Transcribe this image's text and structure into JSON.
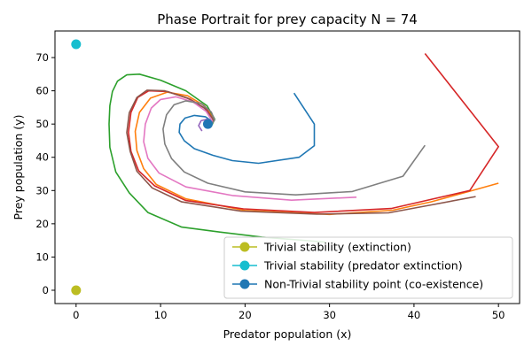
{
  "chart_data": {
    "type": "line",
    "title": "Phase Portrait for prey capacity N = 74",
    "xlabel": "Predator population (x)",
    "ylabel": "Prey population (y)",
    "xlim": [
      -2.5,
      52.5
    ],
    "ylim": [
      -4,
      78
    ],
    "xticks": [
      0,
      10,
      20,
      30,
      40,
      50
    ],
    "yticks": [
      0,
      10,
      20,
      30,
      40,
      50,
      60,
      70
    ],
    "grid": false,
    "legend_position": "bottom-right",
    "trajectories": [
      {
        "color": "#1f77b4",
        "points": [
          [
            25.8,
            59.3
          ],
          [
            28.2,
            50.0
          ],
          [
            28.2,
            43.5
          ],
          [
            26.4,
            40.0
          ],
          [
            21.6,
            38.2
          ],
          [
            18.5,
            39.0
          ],
          [
            16.2,
            40.6
          ],
          [
            14.0,
            42.6
          ],
          [
            12.8,
            45.0
          ],
          [
            12.2,
            47.5
          ],
          [
            12.3,
            50.0
          ],
          [
            12.9,
            51.8
          ],
          [
            14.0,
            52.6
          ],
          [
            15.3,
            52.2
          ],
          [
            16.1,
            50.8
          ],
          [
            15.9,
            49.8
          ]
        ]
      },
      {
        "color": "#ff7f0e",
        "points": [
          [
            50.0,
            32.2
          ],
          [
            46.5,
            29.7
          ],
          [
            42.0,
            26.6
          ],
          [
            37.5,
            24.1
          ],
          [
            30.0,
            22.8
          ],
          [
            20.0,
            24.0
          ],
          [
            13.0,
            27.5
          ],
          [
            9.5,
            31.8
          ],
          [
            8.0,
            36.6
          ],
          [
            7.2,
            42.0
          ],
          [
            7.0,
            47.8
          ],
          [
            7.5,
            53.5
          ],
          [
            8.8,
            57.8
          ],
          [
            10.8,
            59.6
          ],
          [
            13.2,
            58.5
          ],
          [
            15.2,
            55.5
          ],
          [
            16.3,
            52.0
          ],
          [
            16.0,
            49.5
          ]
        ]
      },
      {
        "color": "#2ca02c",
        "points": [
          [
            29.5,
            14.5
          ],
          [
            22.0,
            16.0
          ],
          [
            17.0,
            17.5
          ],
          [
            12.5,
            19.0
          ],
          [
            8.5,
            23.4
          ],
          [
            6.3,
            29.3
          ],
          [
            4.7,
            35.6
          ],
          [
            4.0,
            43.0
          ],
          [
            3.9,
            50.0
          ],
          [
            4.0,
            55.5
          ],
          [
            4.3,
            59.8
          ],
          [
            4.9,
            62.9
          ],
          [
            6.0,
            64.8
          ],
          [
            7.5,
            65.0
          ],
          [
            10.0,
            63.2
          ],
          [
            13.0,
            60.0
          ],
          [
            15.5,
            55.5
          ],
          [
            16.4,
            51.5
          ],
          [
            16.1,
            49.8
          ]
        ]
      },
      {
        "color": "#d62728",
        "points": [
          [
            41.3,
            71.2
          ],
          [
            50.0,
            43.2
          ],
          [
            46.6,
            30.0
          ],
          [
            37.3,
            24.6
          ],
          [
            28.2,
            23.4
          ],
          [
            19.8,
            24.5
          ],
          [
            13.0,
            27.0
          ],
          [
            9.3,
            31.4
          ],
          [
            7.4,
            36.0
          ],
          [
            6.5,
            41.8
          ],
          [
            6.2,
            47.5
          ],
          [
            6.5,
            53.5
          ],
          [
            7.3,
            58.0
          ],
          [
            8.6,
            60.0
          ],
          [
            10.8,
            59.8
          ],
          [
            13.5,
            57.5
          ],
          [
            15.4,
            54.5
          ],
          [
            16.2,
            51.5
          ],
          [
            15.9,
            49.5
          ]
        ]
      },
      {
        "color": "#9467bd",
        "points": [
          [
            14.9,
            47.9
          ],
          [
            14.5,
            49.5
          ],
          [
            14.8,
            51.0
          ],
          [
            15.6,
            51.5
          ],
          [
            16.1,
            50.6
          ]
        ]
      },
      {
        "color": "#8c564b",
        "points": [
          [
            47.3,
            28.2
          ],
          [
            41.3,
            25.3
          ],
          [
            37.0,
            23.3
          ],
          [
            28.5,
            22.9
          ],
          [
            19.5,
            23.8
          ],
          [
            12.5,
            26.6
          ],
          [
            9.0,
            30.8
          ],
          [
            7.2,
            35.8
          ],
          [
            6.4,
            41.8
          ],
          [
            6.0,
            47.4
          ],
          [
            6.3,
            53.4
          ],
          [
            7.2,
            58.0
          ],
          [
            8.4,
            60.2
          ],
          [
            10.5,
            60.0
          ],
          [
            13.2,
            57.8
          ],
          [
            15.2,
            54.8
          ],
          [
            16.2,
            51.5
          ],
          [
            16.0,
            49.3
          ]
        ]
      },
      {
        "color": "#e377c2",
        "points": [
          [
            33.2,
            28.0
          ],
          [
            25.5,
            27.1
          ],
          [
            18.5,
            28.5
          ],
          [
            13.0,
            31.1
          ],
          [
            9.8,
            35.3
          ],
          [
            8.5,
            39.7
          ],
          [
            8.0,
            44.7
          ],
          [
            8.2,
            50.0
          ],
          [
            8.9,
            54.8
          ],
          [
            10.0,
            57.4
          ],
          [
            11.8,
            58.2
          ],
          [
            13.8,
            56.7
          ],
          [
            15.4,
            53.8
          ],
          [
            16.1,
            51.0
          ],
          [
            15.9,
            49.5
          ]
        ]
      },
      {
        "color": "#7f7f7f",
        "points": [
          [
            41.3,
            43.6
          ],
          [
            38.7,
            34.3
          ],
          [
            32.7,
            29.7
          ],
          [
            26.0,
            28.7
          ],
          [
            20.0,
            29.6
          ],
          [
            15.6,
            32.2
          ],
          [
            12.8,
            35.6
          ],
          [
            11.3,
            39.6
          ],
          [
            10.5,
            44.0
          ],
          [
            10.3,
            48.5
          ],
          [
            10.7,
            52.8
          ],
          [
            11.6,
            55.8
          ],
          [
            13.0,
            57.0
          ],
          [
            14.8,
            56.2
          ],
          [
            16.0,
            53.6
          ],
          [
            16.4,
            51.2
          ],
          [
            16.0,
            49.8
          ]
        ]
      }
    ],
    "points": [
      {
        "label": "Trivial stability (extinction)",
        "x": 0,
        "y": 0,
        "color": "#bcbd22"
      },
      {
        "label": "Trivial stability (predator extinction)",
        "x": 0,
        "y": 74,
        "color": "#17becf"
      },
      {
        "label": "Non-Trivial stability point (co-existence)",
        "x": 15.6,
        "y": 50.0,
        "color": "#1f77b4"
      }
    ]
  }
}
